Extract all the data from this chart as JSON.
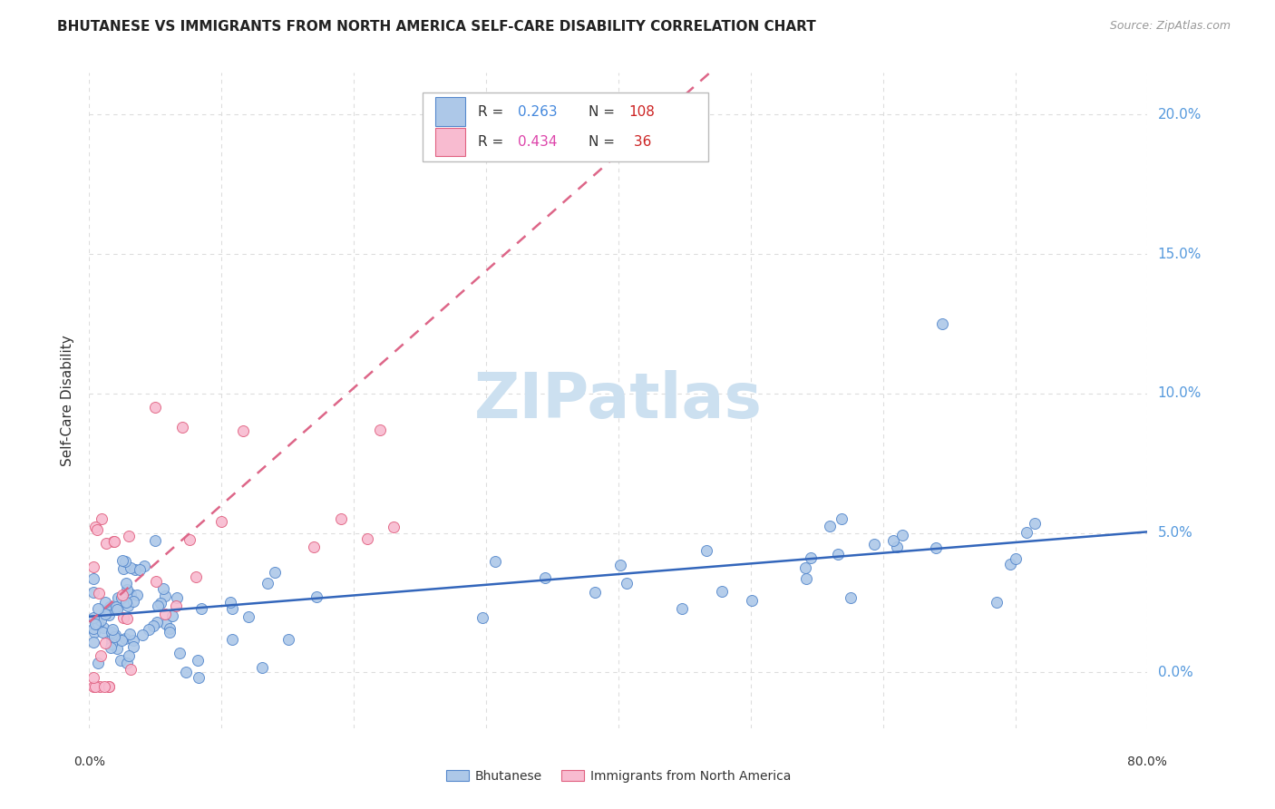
{
  "title": "BHUTANESE VS IMMIGRANTS FROM NORTH AMERICA SELF-CARE DISABILITY CORRELATION CHART",
  "source": "Source: ZipAtlas.com",
  "ylabel": "Self-Care Disability",
  "xlim": [
    0.0,
    0.8
  ],
  "ylim": [
    -0.02,
    0.215
  ],
  "ytick_values": [
    0.0,
    0.05,
    0.1,
    0.15,
    0.2
  ],
  "ytick_labels": [
    "0.0%",
    "5.0%",
    "10.0%",
    "15.0%",
    "20.0%"
  ],
  "bhutanese_color": "#adc8e8",
  "bhutanese_edge_color": "#5588cc",
  "na_color": "#f8bbd0",
  "na_edge_color": "#e06080",
  "trendline_blue_color": "#3366bb",
  "trendline_pink_color": "#dd6688",
  "grid_color": "#dddddd",
  "watermark": "ZIPatlas",
  "watermark_color": "#cce0f0",
  "background_color": "#ffffff",
  "title_color": "#222222",
  "axis_label_color": "#5599dd",
  "r_blue": "0.263",
  "n_blue": "108",
  "r_pink": "0.434",
  "n_pink": "36",
  "legend_r_color": "#333333",
  "legend_rv_blue": "#4488dd",
  "legend_rv_pink": "#dd44aa",
  "legend_n_color": "#333333",
  "legend_nv_color": "#cc2222"
}
